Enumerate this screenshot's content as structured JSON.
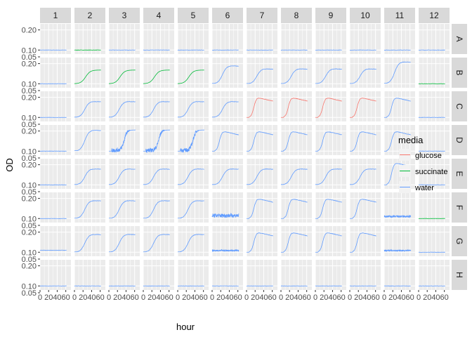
{
  "chart_data": {
    "type": "line",
    "title": "",
    "xlabel": "hour",
    "ylabel": "OD",
    "columns": [
      "1",
      "2",
      "3",
      "4",
      "5",
      "6",
      "7",
      "8",
      "9",
      "10",
      "11",
      "12"
    ],
    "rows": [
      "A",
      "B",
      "C",
      "D",
      "E",
      "F",
      "G",
      "H"
    ],
    "x_ticks": [
      "0",
      "20",
      "40",
      "60"
    ],
    "y_ticks": [
      "0.05",
      "0.10",
      "0.20"
    ],
    "y_tick_values": [
      0.05,
      0.1,
      0.2
    ],
    "xlim": [
      0,
      72
    ],
    "ylim": [
      0.08,
      0.23
    ],
    "grid": true,
    "legend": {
      "title": "media",
      "position": "right",
      "entries": [
        {
          "name": "glucose",
          "color": "#F8766D"
        },
        {
          "name": "succinate",
          "color": "#00BA38"
        },
        {
          "name": "water",
          "color": "#619CFF"
        }
      ]
    },
    "panel_background": "#EBEBEB",
    "strip_background": "#D9D9D9",
    "wells": [
      [
        {
          "media": "water",
          "shape": "flat",
          "base": 0.1,
          "top": 0.1
        },
        {
          "media": "succinate",
          "shape": "flat",
          "base": 0.1,
          "top": 0.1
        },
        {
          "media": "water",
          "shape": "flat",
          "base": 0.1,
          "top": 0.1
        },
        {
          "media": "water",
          "shape": "flat",
          "base": 0.1,
          "top": 0.1
        },
        {
          "media": "water",
          "shape": "flat",
          "base": 0.1,
          "top": 0.1
        },
        {
          "media": "water",
          "shape": "flat",
          "base": 0.1,
          "top": 0.1
        },
        {
          "media": "water",
          "shape": "flat",
          "base": 0.1,
          "top": 0.1
        },
        {
          "media": "water",
          "shape": "flat",
          "base": 0.1,
          "top": 0.1
        },
        {
          "media": "water",
          "shape": "flat",
          "base": 0.1,
          "top": 0.1
        },
        {
          "media": "water",
          "shape": "flat",
          "base": 0.1,
          "top": 0.1
        },
        {
          "media": "water",
          "shape": "flat",
          "base": 0.1,
          "top": 0.1
        },
        {
          "media": "water",
          "shape": "flat",
          "base": 0.1,
          "top": 0.1
        }
      ],
      [
        {
          "media": "water",
          "shape": "flat",
          "base": 0.1,
          "top": 0.1
        },
        {
          "media": "succinate",
          "shape": "sigmoid",
          "base": 0.1,
          "top": 0.168
        },
        {
          "media": "succinate",
          "shape": "sigmoid",
          "base": 0.1,
          "top": 0.168
        },
        {
          "media": "succinate",
          "shape": "sigmoid",
          "base": 0.1,
          "top": 0.168
        },
        {
          "media": "succinate",
          "shape": "sigmoid",
          "base": 0.1,
          "top": 0.168
        },
        {
          "media": "water",
          "shape": "growth",
          "base": 0.1,
          "top": 0.19
        },
        {
          "media": "water",
          "shape": "growth",
          "base": 0.1,
          "top": 0.175
        },
        {
          "media": "water",
          "shape": "growth",
          "base": 0.1,
          "top": 0.175
        },
        {
          "media": "water",
          "shape": "growth",
          "base": 0.1,
          "top": 0.175
        },
        {
          "media": "water",
          "shape": "growth",
          "base": 0.1,
          "top": 0.175
        },
        {
          "media": "water",
          "shape": "growth",
          "base": 0.1,
          "top": 0.21
        },
        {
          "media": "succinate",
          "shape": "flat",
          "base": 0.1,
          "top": 0.1
        }
      ],
      [
        {
          "media": "water",
          "shape": "flat",
          "base": 0.1,
          "top": 0.1
        },
        {
          "media": "water",
          "shape": "growth",
          "base": 0.1,
          "top": 0.18
        },
        {
          "media": "water",
          "shape": "growth",
          "base": 0.1,
          "top": 0.18
        },
        {
          "media": "water",
          "shape": "growth",
          "base": 0.1,
          "top": 0.18
        },
        {
          "media": "water",
          "shape": "growth",
          "base": 0.1,
          "top": 0.18
        },
        {
          "media": "water",
          "shape": "growth",
          "base": 0.1,
          "top": 0.18
        },
        {
          "media": "glucose",
          "shape": "peak",
          "base": 0.1,
          "top": 0.2
        },
        {
          "media": "glucose",
          "shape": "peak",
          "base": 0.1,
          "top": 0.2
        },
        {
          "media": "glucose",
          "shape": "peak",
          "base": 0.1,
          "top": 0.2
        },
        {
          "media": "glucose",
          "shape": "peak",
          "base": 0.1,
          "top": 0.2
        },
        {
          "media": "water",
          "shape": "peak",
          "base": 0.1,
          "top": 0.2
        },
        {
          "media": "water",
          "shape": "flat",
          "base": 0.1,
          "top": 0.1
        }
      ],
      [
        {
          "media": "water",
          "shape": "flat",
          "base": 0.1,
          "top": 0.1
        },
        {
          "media": "water",
          "shape": "growth",
          "base": 0.1,
          "top": 0.205
        },
        {
          "media": "water",
          "shape": "noisy",
          "base": 0.1,
          "top": 0.205
        },
        {
          "media": "water",
          "shape": "noisy",
          "base": 0.1,
          "top": 0.205
        },
        {
          "media": "water",
          "shape": "noisy",
          "base": 0.1,
          "top": 0.205
        },
        {
          "media": "water",
          "shape": "peak",
          "base": 0.1,
          "top": 0.2
        },
        {
          "media": "water",
          "shape": "peak",
          "base": 0.1,
          "top": 0.2
        },
        {
          "media": "water",
          "shape": "peak",
          "base": 0.1,
          "top": 0.2
        },
        {
          "media": "water",
          "shape": "peak",
          "base": 0.1,
          "top": 0.2
        },
        {
          "media": "water",
          "shape": "peak",
          "base": 0.1,
          "top": 0.2
        },
        {
          "media": "water",
          "shape": "peak",
          "base": 0.1,
          "top": 0.2
        },
        {
          "media": "water",
          "shape": "flat",
          "base": 0.1,
          "top": 0.1
        }
      ],
      [
        {
          "media": "water",
          "shape": "flat",
          "base": 0.1,
          "top": 0.1
        },
        {
          "media": "water",
          "shape": "growth",
          "base": 0.1,
          "top": 0.18
        },
        {
          "media": "water",
          "shape": "growth",
          "base": 0.1,
          "top": 0.18
        },
        {
          "media": "water",
          "shape": "growth",
          "base": 0.1,
          "top": 0.18
        },
        {
          "media": "water",
          "shape": "growth",
          "base": 0.1,
          "top": 0.18
        },
        {
          "media": "water",
          "shape": "growth",
          "base": 0.1,
          "top": 0.18
        },
        {
          "media": "water",
          "shape": "growth",
          "base": 0.1,
          "top": 0.18
        },
        {
          "media": "water",
          "shape": "growth",
          "base": 0.1,
          "top": 0.18
        },
        {
          "media": "water",
          "shape": "growth",
          "base": 0.1,
          "top": 0.18
        },
        {
          "media": "water",
          "shape": "growth",
          "base": 0.1,
          "top": 0.18
        },
        {
          "media": "water",
          "shape": "peak",
          "base": 0.1,
          "top": 0.21
        },
        {
          "media": "water",
          "shape": "flat",
          "base": 0.1,
          "top": 0.1
        }
      ],
      [
        {
          "media": "water",
          "shape": "flat",
          "base": 0.1,
          "top": 0.1
        },
        {
          "media": "water",
          "shape": "growth",
          "base": 0.1,
          "top": 0.19
        },
        {
          "media": "water",
          "shape": "growth",
          "base": 0.1,
          "top": 0.19
        },
        {
          "media": "water",
          "shape": "growth",
          "base": 0.1,
          "top": 0.19
        },
        {
          "media": "water",
          "shape": "growth",
          "base": 0.1,
          "top": 0.19
        },
        {
          "media": "water",
          "shape": "band",
          "base": 0.105,
          "top": 0.125
        },
        {
          "media": "water",
          "shape": "peak",
          "base": 0.1,
          "top": 0.2
        },
        {
          "media": "water",
          "shape": "peak",
          "base": 0.1,
          "top": 0.2
        },
        {
          "media": "water",
          "shape": "peak",
          "base": 0.1,
          "top": 0.2
        },
        {
          "media": "water",
          "shape": "peak",
          "base": 0.1,
          "top": 0.2
        },
        {
          "media": "water",
          "shape": "band",
          "base": 0.105,
          "top": 0.115
        },
        {
          "media": "succinate",
          "shape": "flat",
          "base": 0.1,
          "top": 0.1
        }
      ],
      [
        {
          "media": "water",
          "shape": "flat",
          "base": 0.11,
          "top": 0.11
        },
        {
          "media": "water",
          "shape": "growth",
          "base": 0.1,
          "top": 0.19
        },
        {
          "media": "water",
          "shape": "growth",
          "base": 0.1,
          "top": 0.19
        },
        {
          "media": "water",
          "shape": "growth",
          "base": 0.1,
          "top": 0.19
        },
        {
          "media": "water",
          "shape": "growth",
          "base": 0.1,
          "top": 0.19
        },
        {
          "media": "water",
          "shape": "band",
          "base": 0.105,
          "top": 0.112
        },
        {
          "media": "water",
          "shape": "peak",
          "base": 0.1,
          "top": 0.2
        },
        {
          "media": "water",
          "shape": "peak",
          "base": 0.1,
          "top": 0.2
        },
        {
          "media": "water",
          "shape": "peak",
          "base": 0.1,
          "top": 0.2
        },
        {
          "media": "water",
          "shape": "peak",
          "base": 0.1,
          "top": 0.2
        },
        {
          "media": "water",
          "shape": "band",
          "base": 0.105,
          "top": 0.112
        },
        {
          "media": "water",
          "shape": "flat",
          "base": 0.1,
          "top": 0.1
        }
      ],
      [
        {
          "media": "water",
          "shape": "flat",
          "base": 0.1,
          "top": 0.1
        },
        {
          "media": "water",
          "shape": "flat",
          "base": 0.1,
          "top": 0.1
        },
        {
          "media": "water",
          "shape": "flat",
          "base": 0.1,
          "top": 0.1
        },
        {
          "media": "water",
          "shape": "flat",
          "base": 0.1,
          "top": 0.1
        },
        {
          "media": "water",
          "shape": "flat",
          "base": 0.1,
          "top": 0.1
        },
        {
          "media": "water",
          "shape": "flat",
          "base": 0.1,
          "top": 0.1
        },
        {
          "media": "water",
          "shape": "flat",
          "base": 0.1,
          "top": 0.1
        },
        {
          "media": "water",
          "shape": "flat",
          "base": 0.1,
          "top": 0.1
        },
        {
          "media": "water",
          "shape": "flat",
          "base": 0.1,
          "top": 0.1
        },
        {
          "media": "water",
          "shape": "flat",
          "base": 0.1,
          "top": 0.1
        },
        {
          "media": "water",
          "shape": "flat",
          "base": 0.1,
          "top": 0.1
        },
        {
          "media": "water",
          "shape": "flat",
          "base": 0.1,
          "top": 0.1
        }
      ]
    ]
  }
}
